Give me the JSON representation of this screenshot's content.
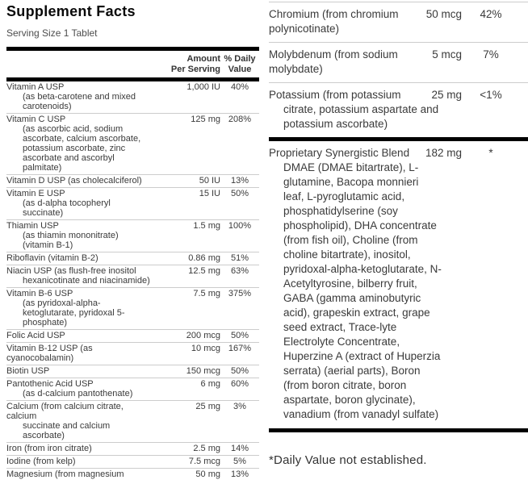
{
  "title": "Supplement Facts",
  "serving_size": "Serving Size 1 Tablet",
  "header": {
    "amount_line1": "Amount",
    "amount_line2": "Per Serving",
    "daily_line1": "% Daily",
    "daily_line2": "Value"
  },
  "colors": {
    "bar": "#000000",
    "separator": "#cccccc",
    "text": "#3a3a3a"
  },
  "left_rows": [
    {
      "lines": [
        {
          "t": "Vitamin A USP",
          "i": 0
        },
        {
          "t": "(as beta-carotene and mixed",
          "i": 1
        },
        {
          "t": "carotenoids)",
          "i": 1
        }
      ],
      "amount": "1,000 IU",
      "daily": "40%"
    },
    {
      "lines": [
        {
          "t": "Vitamin C USP",
          "i": 0
        },
        {
          "t": "(as ascorbic acid, sodium",
          "i": 1
        },
        {
          "t": "ascorbate, calcium ascorbate,",
          "i": 1
        },
        {
          "t": "potassium ascorbate, zinc",
          "i": 1
        },
        {
          "t": "ascorbate and ascorbyl",
          "i": 1
        },
        {
          "t": "palmitate)",
          "i": 1
        }
      ],
      "amount": "125 mg",
      "daily": "208%"
    },
    {
      "lines": [
        {
          "t": "Vitamin D USP (as cholecalciferol)",
          "i": 0
        }
      ],
      "amount": "50 IU",
      "daily": "13%"
    },
    {
      "lines": [
        {
          "t": "Vitamin E USP",
          "i": 0
        },
        {
          "t": "(as d-alpha tocopheryl",
          "i": 1
        },
        {
          "t": "succinate)",
          "i": 1
        }
      ],
      "amount": "15 IU",
      "daily": "50%"
    },
    {
      "lines": [
        {
          "t": "Thiamin USP",
          "i": 0
        },
        {
          "t": "(as thiamin mononitrate)",
          "i": 1
        },
        {
          "t": "(vitamin B-1)",
          "i": 1
        }
      ],
      "amount": "1.5 mg",
      "daily": "100%"
    },
    {
      "lines": [
        {
          "t": "Riboflavin (vitamin B-2)",
          "i": 0
        }
      ],
      "amount": "0.86 mg",
      "daily": "51%"
    },
    {
      "lines": [
        {
          "t": "Niacin USP (as flush-free inositol",
          "i": 0
        },
        {
          "t": "hexanicotinate and niacinamide)",
          "i": 1
        }
      ],
      "amount": "12.5 mg",
      "daily": "63%"
    },
    {
      "lines": [
        {
          "t": "Vitamin B-6 USP",
          "i": 0
        },
        {
          "t": "(as pyridoxal-alpha-",
          "i": 1
        },
        {
          "t": "ketoglutarate, pyridoxal 5-",
          "i": 1
        },
        {
          "t": "phosphate)",
          "i": 1
        }
      ],
      "amount": "7.5 mg",
      "daily": "375%"
    },
    {
      "lines": [
        {
          "t": "Folic Acid USP",
          "i": 0
        }
      ],
      "amount": "200 mcg",
      "daily": "50%"
    },
    {
      "lines": [
        {
          "t": "Vitamin B-12 USP (as",
          "i": 0
        },
        {
          "t": "cyanocobalamin)",
          "i": 0
        }
      ],
      "amount": "10 mcg",
      "daily": "167%"
    },
    {
      "lines": [
        {
          "t": "Biotin USP",
          "i": 0
        }
      ],
      "amount": "150 mcg",
      "daily": "50%"
    },
    {
      "lines": [
        {
          "t": "Pantothenic Acid USP",
          "i": 0
        },
        {
          "t": "(as d-calcium pantothenate)",
          "i": 1
        }
      ],
      "amount": "6 mg",
      "daily": "60%"
    },
    {
      "lines": [
        {
          "t": "Calcium (from calcium citrate,",
          "i": 0
        },
        {
          "t": "calcium",
          "i": 0
        },
        {
          "t": "succinate and calcium",
          "i": 1
        },
        {
          "t": "ascorbate)",
          "i": 1
        }
      ],
      "amount": "25 mg",
      "daily": "3%"
    },
    {
      "lines": [
        {
          "t": "Iron (from iron citrate)",
          "i": 0
        }
      ],
      "amount": "2.5 mg",
      "daily": "14%"
    },
    {
      "lines": [
        {
          "t": "Iodine (from kelp)",
          "i": 0
        }
      ],
      "amount": "7.5 mcg",
      "daily": "5%"
    },
    {
      "lines": [
        {
          "t": "Magnesium (from magnesium",
          "i": 0
        }
      ],
      "amount": "50 mg",
      "daily": "13%"
    }
  ],
  "right_rows": [
    {
      "lines": [
        {
          "t": "Chromium (from chromium",
          "i": 0
        },
        {
          "t": "polynicotinate)",
          "i": 0
        }
      ],
      "amount": "50 mcg",
      "daily": "42%"
    },
    {
      "lines": [
        {
          "t": "Molybdenum (from sodium",
          "i": 0
        },
        {
          "t": "molybdate)",
          "i": 0
        }
      ],
      "amount": "5 mcg",
      "daily": "7%"
    },
    {
      "lines": [
        {
          "t": "Potassium (from potassium",
          "i": 0
        },
        {
          "t": "citrate, potassium aspartate and",
          "i": 1
        },
        {
          "t": "potassium ascorbate)",
          "i": 1
        }
      ],
      "amount": "25 mg",
      "daily": "<1%"
    }
  ],
  "blend_rows": [
    {
      "lines": [
        {
          "t": "Proprietary Synergistic Blend",
          "i": 0
        },
        {
          "t": "DMAE (DMAE bitartrate), L-",
          "i": 1
        },
        {
          "t": "glutamine, Bacopa monnieri",
          "i": 1
        },
        {
          "t": "leaf, L-pyroglutamic acid,",
          "i": 1
        },
        {
          "t": "phosphatidylserine (soy",
          "i": 1
        },
        {
          "t": "phospholipid), DHA concentrate",
          "i": 1
        },
        {
          "t": "(from fish oil), Choline (from",
          "i": 1
        },
        {
          "t": "choline bitartrate), inositol,",
          "i": 1
        },
        {
          "t": "pyridoxal-alpha-ketoglutarate, N-",
          "i": 1
        },
        {
          "t": "Acetyltyrosine, bilberry fruit,",
          "i": 1
        },
        {
          "t": "GABA (gamma aminobutyric",
          "i": 1
        },
        {
          "t": "acid), grapeskin extract, grape",
          "i": 1
        },
        {
          "t": "seed extract, Trace-lyte",
          "i": 1
        },
        {
          "t": "Electrolyte Concentrate,",
          "i": 1
        },
        {
          "t": "Huperzine A (extract of Huperzia",
          "i": 1
        },
        {
          "t": "serrata) (aerial parts), Boron",
          "i": 1
        },
        {
          "t": "(from boron citrate, boron",
          "i": 1
        },
        {
          "t": "aspartate, boron glycinate),",
          "i": 1
        },
        {
          "t": "vanadium (from vanadyl sulfate)",
          "i": 1
        }
      ],
      "amount": "182 mg",
      "daily": "*"
    }
  ],
  "footnote": "*Daily Value not established."
}
